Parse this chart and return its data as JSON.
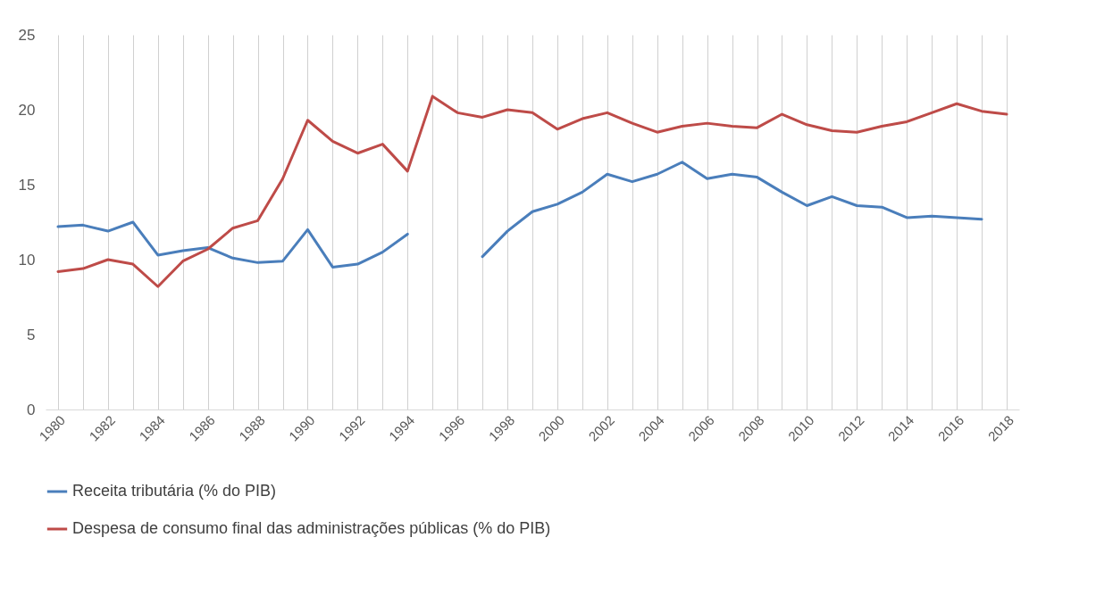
{
  "chart_data": {
    "type": "line",
    "categories": [
      "1980",
      null,
      "1982",
      null,
      "1984",
      null,
      "1986",
      null,
      "1988",
      null,
      "1990",
      null,
      "1992",
      null,
      "1994",
      null,
      "1996",
      null,
      "1998",
      null,
      "2000",
      null,
      "2002",
      null,
      "2004",
      null,
      "2006",
      null,
      "2008",
      null,
      "2010",
      null,
      "2012",
      null,
      "2014",
      null,
      "2016",
      null,
      "2018"
    ],
    "series": [
      {
        "name": "Receita tributária (% do PIB)",
        "color": "#4a7ebb",
        "values": [
          12.2,
          12.3,
          11.9,
          12.5,
          10.3,
          10.6,
          10.8,
          10.1,
          9.8,
          9.9,
          12.0,
          9.5,
          9.7,
          10.5,
          11.7,
          null,
          null,
          10.2,
          11.9,
          13.2,
          13.7,
          14.5,
          15.7,
          15.2,
          15.7,
          16.5,
          15.4,
          15.7,
          15.5,
          14.5,
          13.6,
          14.2,
          13.6,
          13.5,
          12.8,
          12.9,
          12.8,
          12.7,
          null
        ]
      },
      {
        "name": "Despesa de consumo final das administrações públicas (% do PIB)",
        "color": "#be4b48",
        "values": [
          9.2,
          9.4,
          10.0,
          9.7,
          8.2,
          9.9,
          10.7,
          12.1,
          12.6,
          15.4,
          19.3,
          17.9,
          17.1,
          17.7,
          15.9,
          20.9,
          19.8,
          19.5,
          20.0,
          19.8,
          18.7,
          19.4,
          19.8,
          19.1,
          18.5,
          18.9,
          19.1,
          18.9,
          18.8,
          19.7,
          19.0,
          18.6,
          18.5,
          18.9,
          19.2,
          19.8,
          20.4,
          19.9,
          19.7
        ]
      }
    ],
    "ylim": [
      0,
      25
    ],
    "yticks": [
      0,
      5,
      10,
      15,
      20,
      25
    ],
    "grid": "x",
    "legend": "bottom"
  }
}
